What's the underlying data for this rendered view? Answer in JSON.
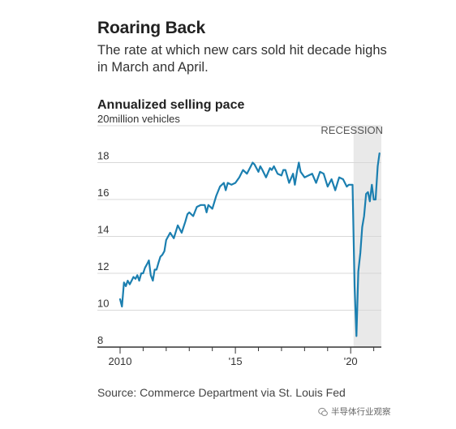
{
  "title": "Roaring Back",
  "subtitle": "The rate at which new cars sold hit decade highs in March and April.",
  "chart_title": "Annualized selling pace",
  "source": "Source: Commerce Department via St. Louis Fed",
  "watermark": "半导体行业观察",
  "colors": {
    "line": "#1b7fb0",
    "recession_shade": "#e9e9e9",
    "grid": "#d8d8d8",
    "axis": "#333333",
    "text": "#222222"
  },
  "chart_data": {
    "type": "line",
    "title": "Annualized selling pace",
    "ylabel": "million vehicles",
    "ylim": [
      8,
      20
    ],
    "xlim": [
      2010,
      2021.33
    ],
    "y_ticks": [
      8,
      10,
      12,
      14,
      16,
      18,
      20
    ],
    "y_tick_labels": [
      "8",
      "10",
      "12",
      "14",
      "16",
      "18",
      "20million vehicles"
    ],
    "x_tick_labels": [
      {
        "year": 2010,
        "label": "2010"
      },
      {
        "year": 2015,
        "label": "'15"
      },
      {
        "year": 2020,
        "label": "'20"
      }
    ],
    "grid": true,
    "shaded_region": {
      "label": "RECESSION",
      "start": 2020.125,
      "end": 2021.33
    },
    "series": [
      {
        "name": "",
        "color": "#1b7fb0",
        "x": [
          2010.0,
          2010.08,
          2010.17,
          2010.25,
          2010.33,
          2010.42,
          2010.5,
          2010.58,
          2010.67,
          2010.75,
          2010.83,
          2010.92,
          2011.0,
          2011.08,
          2011.17,
          2011.25,
          2011.33,
          2011.42,
          2011.5,
          2011.58,
          2011.67,
          2011.75,
          2011.83,
          2011.92,
          2012.0,
          2012.17,
          2012.33,
          2012.5,
          2012.67,
          2012.83,
          2012.92,
          2013.0,
          2013.17,
          2013.33,
          2013.5,
          2013.67,
          2013.75,
          2013.83,
          2014.0,
          2014.17,
          2014.33,
          2014.5,
          2014.58,
          2014.67,
          2014.83,
          2015.0,
          2015.17,
          2015.33,
          2015.5,
          2015.67,
          2015.75,
          2015.83,
          2016.0,
          2016.08,
          2016.17,
          2016.33,
          2016.5,
          2016.58,
          2016.67,
          2016.83,
          2017.0,
          2017.08,
          2017.17,
          2017.33,
          2017.5,
          2017.58,
          2017.67,
          2017.75,
          2017.83,
          2018.0,
          2018.17,
          2018.33,
          2018.5,
          2018.67,
          2018.83,
          2019.0,
          2019.17,
          2019.33,
          2019.5,
          2019.67,
          2019.83,
          2019.92,
          2020.0,
          2020.08,
          2020.17,
          2020.25,
          2020.33,
          2020.42,
          2020.5,
          2020.58,
          2020.67,
          2020.75,
          2020.83,
          2020.92,
          2021.0,
          2021.08,
          2021.17,
          2021.25
        ],
        "y": [
          10.6,
          10.2,
          11.5,
          11.3,
          11.6,
          11.4,
          11.6,
          11.8,
          11.7,
          11.9,
          11.6,
          12.0,
          12.0,
          12.3,
          12.5,
          12.7,
          11.9,
          11.6,
          12.2,
          12.2,
          12.6,
          12.9,
          13.0,
          13.2,
          13.8,
          14.2,
          13.9,
          14.6,
          14.2,
          14.8,
          15.2,
          15.3,
          15.1,
          15.6,
          15.7,
          15.7,
          15.3,
          15.7,
          15.5,
          16.2,
          16.7,
          16.9,
          16.5,
          16.9,
          16.8,
          16.9,
          17.2,
          17.6,
          17.4,
          17.8,
          18.0,
          17.9,
          17.5,
          17.8,
          17.6,
          17.2,
          17.7,
          17.6,
          17.8,
          17.4,
          17.3,
          17.6,
          17.6,
          16.9,
          17.4,
          16.8,
          17.5,
          18.0,
          17.5,
          17.2,
          17.3,
          17.4,
          16.9,
          17.5,
          17.4,
          16.7,
          17.1,
          16.5,
          17.2,
          17.1,
          16.7,
          16.8,
          16.8,
          16.8,
          11.3,
          8.6,
          12.1,
          13.1,
          14.5,
          15.1,
          16.3,
          16.4,
          15.9,
          16.8,
          16.0,
          16.0,
          17.8,
          18.5
        ]
      }
    ]
  }
}
